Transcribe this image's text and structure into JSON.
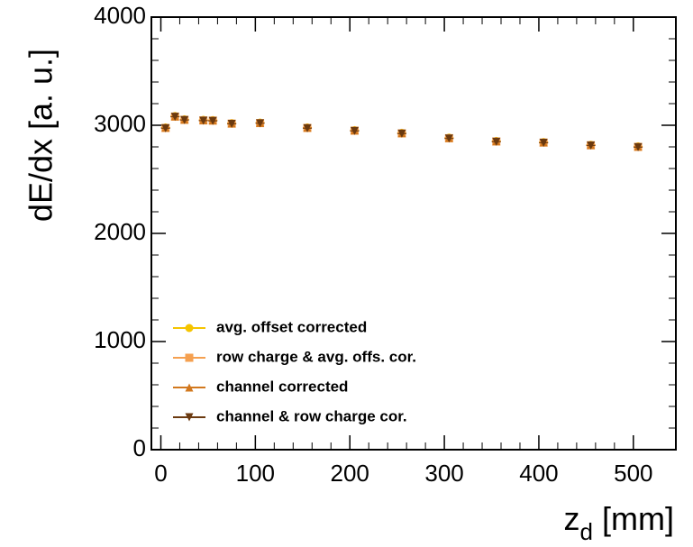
{
  "chart_data": {
    "type": "scatter",
    "x_label": {
      "text": "z",
      "subscript": "d",
      "unit": "[mm]"
    },
    "y_label": "dE/dx [a. u.]",
    "x": [
      5,
      15,
      25,
      45,
      55,
      75,
      105,
      155,
      205,
      255,
      305,
      355,
      405,
      455,
      505
    ],
    "series": [
      {
        "name": "avg. offset corrected",
        "color": "#f5c400",
        "marker": "circle",
        "values": [
          2980,
          3085,
          3055,
          3050,
          3048,
          3020,
          3025,
          2980,
          2955,
          2930,
          2885,
          2855,
          2845,
          2820,
          2805
        ]
      },
      {
        "name": "row charge & avg. offs. cor.",
        "color": "#f5a050",
        "marker": "square",
        "values": [
          2975,
          3080,
          3050,
          3045,
          3043,
          3015,
          3020,
          2975,
          2950,
          2925,
          2880,
          2850,
          2840,
          2815,
          2800
        ]
      },
      {
        "name": "channel corrected",
        "color": "#d2781e",
        "marker": "triangle-up",
        "values": [
          2978,
          3082,
          3052,
          3047,
          3045,
          3018,
          3022,
          2978,
          2952,
          2927,
          2882,
          2852,
          2842,
          2817,
          2802
        ]
      },
      {
        "name": "channel & row charge cor.",
        "color": "#6b3a10",
        "marker": "triangle-down",
        "values": [
          2972,
          3078,
          3048,
          3042,
          3040,
          3012,
          3018,
          2972,
          2947,
          2922,
          2877,
          2847,
          2837,
          2812,
          2797
        ]
      }
    ],
    "xlim": [
      -10,
      545
    ],
    "xticks": [
      0,
      100,
      200,
      300,
      400,
      500
    ],
    "ylim": [
      0,
      4000
    ],
    "yticks": [
      0,
      1000,
      2000,
      3000,
      4000
    ],
    "legend": "lower-left"
  }
}
